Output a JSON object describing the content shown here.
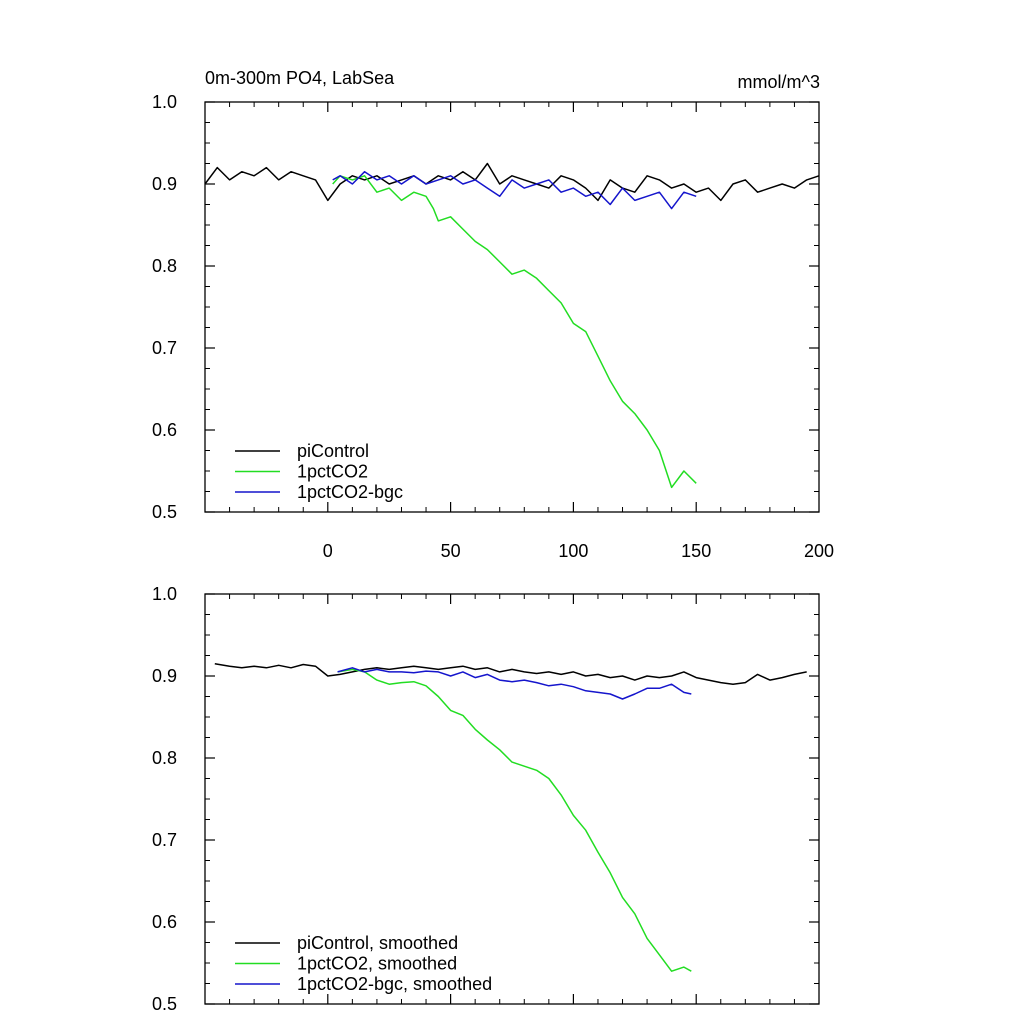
{
  "chart_data": [
    {
      "type": "line",
      "title": "0m-300m PO4, LabSea",
      "units": "mmol/m^3",
      "xlim": [
        -50,
        200
      ],
      "ylim": [
        0.5,
        1.0
      ],
      "xticks": [
        0,
        50,
        100,
        150,
        200
      ],
      "yticks": [
        "0.5",
        "0.6",
        "0.7",
        "0.8",
        "0.9",
        "1.0"
      ],
      "legend_position": "bottom-left",
      "series": [
        {
          "name": "piControl",
          "color": "#000000",
          "x": [
            -50,
            -45,
            -40,
            -35,
            -30,
            -25,
            -20,
            -15,
            -10,
            -5,
            0,
            5,
            10,
            15,
            20,
            25,
            30,
            35,
            40,
            45,
            50,
            55,
            60,
            65,
            70,
            75,
            80,
            85,
            90,
            95,
            100,
            105,
            110,
            115,
            120,
            125,
            130,
            135,
            140,
            145,
            150,
            155,
            160,
            165,
            170,
            175,
            180,
            185,
            190,
            195,
            200
          ],
          "y": [
            0.9,
            0.92,
            0.905,
            0.915,
            0.91,
            0.92,
            0.905,
            0.915,
            0.91,
            0.905,
            0.88,
            0.9,
            0.91,
            0.905,
            0.91,
            0.9,
            0.905,
            0.91,
            0.9,
            0.91,
            0.905,
            0.915,
            0.905,
            0.925,
            0.9,
            0.91,
            0.905,
            0.9,
            0.895,
            0.91,
            0.905,
            0.895,
            0.88,
            0.905,
            0.895,
            0.89,
            0.91,
            0.905,
            0.895,
            0.9,
            0.89,
            0.895,
            0.88,
            0.9,
            0.905,
            0.89,
            0.895,
            0.9,
            0.895,
            0.905,
            0.91
          ]
        },
        {
          "name": "1pctCO2",
          "color": "#22dd22",
          "x": [
            2,
            5,
            10,
            15,
            20,
            25,
            30,
            35,
            40,
            43,
            45,
            50,
            55,
            60,
            65,
            70,
            75,
            80,
            85,
            90,
            95,
            100,
            105,
            110,
            115,
            120,
            125,
            130,
            135,
            140,
            145,
            150
          ],
          "y": [
            0.9,
            0.91,
            0.905,
            0.91,
            0.89,
            0.895,
            0.88,
            0.89,
            0.885,
            0.87,
            0.855,
            0.86,
            0.845,
            0.83,
            0.82,
            0.805,
            0.79,
            0.795,
            0.785,
            0.77,
            0.755,
            0.73,
            0.72,
            0.69,
            0.66,
            0.635,
            0.62,
            0.6,
            0.575,
            0.53,
            0.55,
            0.535
          ]
        },
        {
          "name": "1pctCO2-bgc",
          "color": "#1515cc",
          "x": [
            2,
            5,
            10,
            15,
            20,
            25,
            30,
            35,
            40,
            45,
            50,
            55,
            60,
            65,
            70,
            75,
            80,
            85,
            90,
            95,
            100,
            105,
            110,
            115,
            120,
            125,
            130,
            135,
            140,
            145,
            150
          ],
          "y": [
            0.905,
            0.91,
            0.9,
            0.915,
            0.905,
            0.91,
            0.9,
            0.91,
            0.9,
            0.905,
            0.91,
            0.9,
            0.905,
            0.895,
            0.885,
            0.905,
            0.895,
            0.9,
            0.905,
            0.89,
            0.895,
            0.885,
            0.89,
            0.875,
            0.895,
            0.88,
            0.885,
            0.89,
            0.87,
            0.89,
            0.885
          ]
        }
      ]
    },
    {
      "type": "line",
      "xlim": [
        -50,
        200
      ],
      "ylim": [
        0.5,
        1.0
      ],
      "yticks": [
        "0.5",
        "0.6",
        "0.7",
        "0.8",
        "0.9",
        "1.0"
      ],
      "legend_position": "bottom-left",
      "series": [
        {
          "name": "piControl, smoothed",
          "color": "#000000",
          "x": [
            -46,
            -40,
            -35,
            -30,
            -25,
            -20,
            -15,
            -10,
            -5,
            0,
            5,
            10,
            15,
            20,
            25,
            30,
            35,
            40,
            45,
            50,
            55,
            60,
            65,
            70,
            75,
            80,
            85,
            90,
            95,
            100,
            105,
            110,
            115,
            120,
            125,
            130,
            135,
            140,
            145,
            150,
            155,
            160,
            165,
            170,
            175,
            180,
            185,
            190,
            195
          ],
          "y": [
            0.915,
            0.912,
            0.91,
            0.912,
            0.91,
            0.913,
            0.91,
            0.914,
            0.912,
            0.9,
            0.902,
            0.905,
            0.908,
            0.91,
            0.908,
            0.91,
            0.912,
            0.91,
            0.908,
            0.91,
            0.912,
            0.908,
            0.91,
            0.905,
            0.908,
            0.905,
            0.903,
            0.905,
            0.902,
            0.905,
            0.9,
            0.902,
            0.898,
            0.9,
            0.895,
            0.9,
            0.898,
            0.9,
            0.905,
            0.898,
            0.895,
            0.892,
            0.89,
            0.892,
            0.902,
            0.895,
            0.898,
            0.902,
            0.905
          ]
        },
        {
          "name": "1pctCO2, smoothed",
          "color": "#22dd22",
          "x": [
            4,
            10,
            15,
            20,
            25,
            30,
            35,
            40,
            45,
            50,
            55,
            60,
            65,
            70,
            75,
            80,
            85,
            90,
            95,
            100,
            105,
            110,
            115,
            120,
            125,
            130,
            135,
            140,
            145,
            148
          ],
          "y": [
            0.905,
            0.908,
            0.905,
            0.895,
            0.89,
            0.892,
            0.893,
            0.888,
            0.875,
            0.858,
            0.852,
            0.835,
            0.822,
            0.81,
            0.795,
            0.79,
            0.785,
            0.775,
            0.755,
            0.73,
            0.712,
            0.685,
            0.66,
            0.63,
            0.61,
            0.58,
            0.56,
            0.54,
            0.545,
            0.54
          ]
        },
        {
          "name": "1pctCO2-bgc, smoothed",
          "color": "#1515cc",
          "x": [
            4,
            10,
            15,
            20,
            25,
            30,
            35,
            40,
            45,
            50,
            55,
            60,
            65,
            70,
            75,
            80,
            85,
            90,
            95,
            100,
            105,
            110,
            115,
            120,
            125,
            130,
            135,
            140,
            145,
            148
          ],
          "y": [
            0.905,
            0.91,
            0.905,
            0.908,
            0.905,
            0.905,
            0.904,
            0.906,
            0.905,
            0.9,
            0.905,
            0.898,
            0.902,
            0.895,
            0.893,
            0.895,
            0.892,
            0.888,
            0.89,
            0.887,
            0.882,
            0.88,
            0.878,
            0.872,
            0.878,
            0.885,
            0.885,
            0.89,
            0.88,
            0.878
          ]
        }
      ]
    }
  ]
}
